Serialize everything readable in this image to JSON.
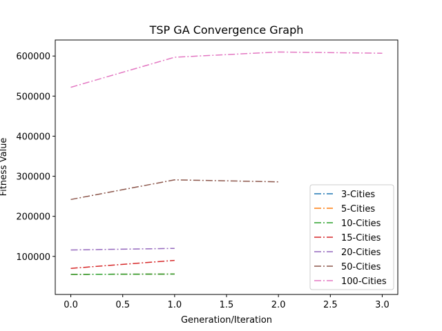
{
  "chart_data": {
    "type": "line",
    "title": "TSP GA Convergence Graph",
    "xlabel": "Generation/Iteration",
    "ylabel": "Fitness Value",
    "xlim": [
      -0.15,
      3.15
    ],
    "ylim": [
      5000,
      640000
    ],
    "xticks": [
      0.0,
      0.5,
      1.0,
      1.5,
      2.0,
      2.5,
      3.0
    ],
    "xtick_labels": [
      "0.0",
      "0.5",
      "1.0",
      "1.5",
      "2.0",
      "2.5",
      "3.0"
    ],
    "yticks": [
      100000,
      200000,
      300000,
      400000,
      500000,
      600000
    ],
    "ytick_labels": [
      "100000",
      "200000",
      "300000",
      "400000",
      "500000",
      "600000"
    ],
    "line_style": "dashdot",
    "grid": false,
    "legend_position": "lower-right",
    "series": [
      {
        "name": "3-Cities",
        "color": "#1f77b4",
        "x": [
          0,
          1
        ],
        "y": [
          55000,
          56000
        ]
      },
      {
        "name": "5-Cities",
        "color": "#ff7f0e",
        "x": [
          0,
          1
        ],
        "y": [
          55000,
          56000
        ]
      },
      {
        "name": "10-Cities",
        "color": "#2ca02c",
        "x": [
          0,
          1
        ],
        "y": [
          55000,
          56000
        ]
      },
      {
        "name": "15-Cities",
        "color": "#d62728",
        "x": [
          0,
          1
        ],
        "y": [
          70000,
          90000
        ]
      },
      {
        "name": "20-Cities",
        "color": "#9467bd",
        "x": [
          0,
          1
        ],
        "y": [
          116000,
          120000
        ]
      },
      {
        "name": "50-Cities",
        "color": "#8c564b",
        "x": [
          0,
          1,
          2
        ],
        "y": [
          242000,
          291000,
          286000
        ]
      },
      {
        "name": "100-Cities",
        "color": "#e377c2",
        "x": [
          0,
          1,
          2,
          3
        ],
        "y": [
          522000,
          597000,
          610000,
          607000
        ]
      }
    ]
  }
}
